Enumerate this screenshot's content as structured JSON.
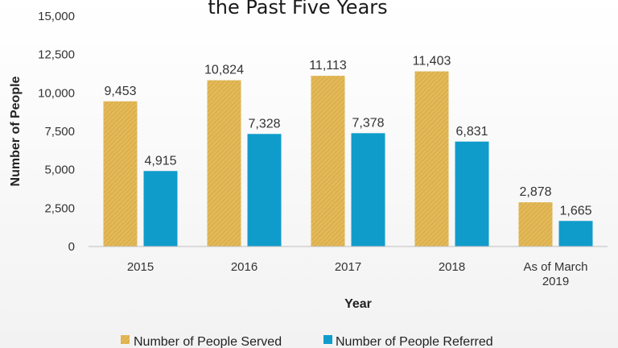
{
  "chart_data": {
    "type": "bar",
    "title": "the Past Five Years",
    "xlabel": "Year",
    "ylabel": "Number of People",
    "ylim": [
      0,
      15000
    ],
    "yticks": [
      "0",
      "2,500",
      "5,000",
      "7,500",
      "10,000",
      "12,500",
      "15,000"
    ],
    "categories": [
      "2015",
      "2016",
      "2017",
      "2018",
      [
        "As of March",
        "2019"
      ]
    ],
    "series": [
      {
        "name": "Number of People Served",
        "color": "#e3b958",
        "values": [
          9453,
          10824,
          11113,
          11403,
          2878
        ],
        "labels": [
          "9,453",
          "10,824",
          "11,113",
          "11,403",
          "2,878"
        ]
      },
      {
        "name": "Number of People Referred",
        "color": "#0f9ccb",
        "values": [
          4915,
          7328,
          7378,
          6831,
          1665
        ],
        "labels": [
          "4,915",
          "7,328",
          "7,378",
          "6,831",
          "1,665"
        ]
      }
    ],
    "grid": false,
    "legend": "bottom"
  }
}
